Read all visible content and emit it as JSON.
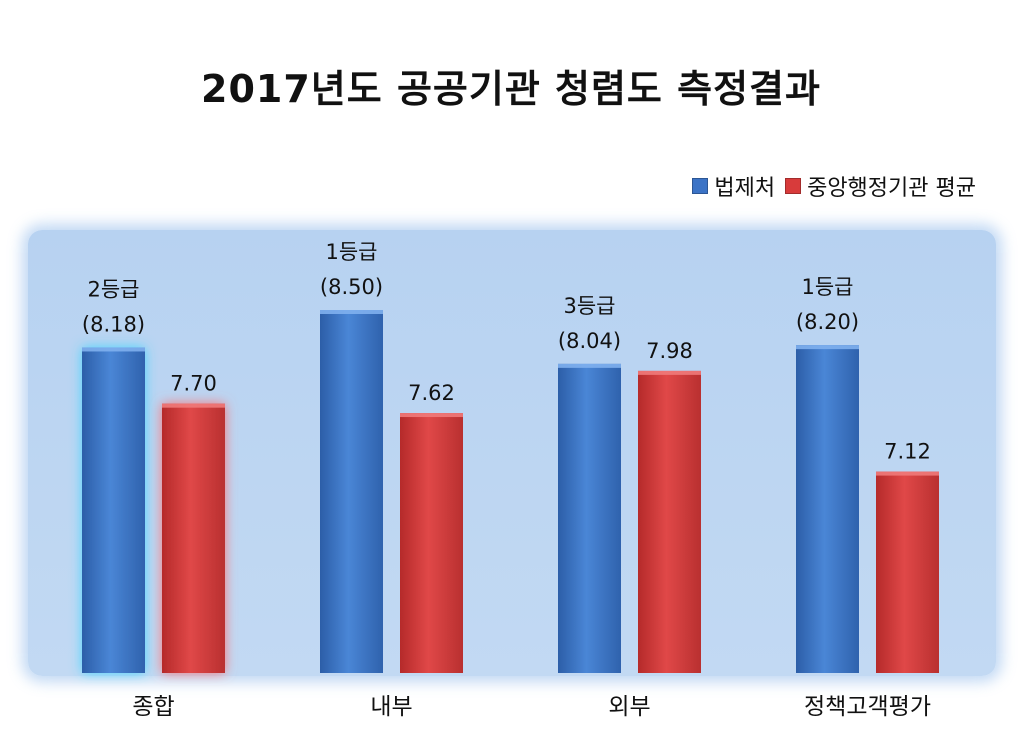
{
  "chart_data": {
    "type": "bar",
    "title": "2017년도 공공기관 청렴도 측정결과",
    "categories": [
      "종합",
      "내부",
      "외부",
      "정책고객평가"
    ],
    "series": [
      {
        "name": "법제처",
        "color": "#3b73c6",
        "values": [
          8.18,
          8.5,
          8.04,
          8.2
        ],
        "grades": [
          "2등급",
          "1등급",
          "3등급",
          "1등급"
        ],
        "value_labels": [
          "(8.18)",
          "(8.50)",
          "(8.04)",
          "(8.20)"
        ]
      },
      {
        "name": "중앙행정기관 평균",
        "color": "#d83b3b",
        "values": [
          7.7,
          7.62,
          7.98,
          7.12
        ],
        "value_labels": [
          "7.70",
          "7.62",
          "7.98",
          "7.12"
        ]
      }
    ],
    "legend_position": "top-right",
    "grid": false,
    "highlighted_category": "종합"
  }
}
